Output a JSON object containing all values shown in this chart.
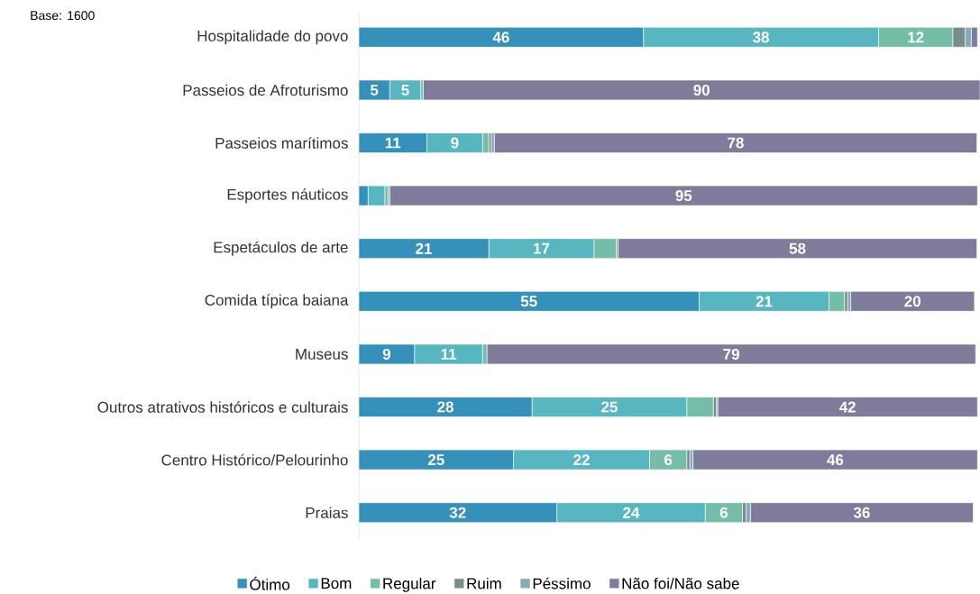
{
  "chart_data": {
    "type": "bar",
    "orientation": "horizontal",
    "stacked": true,
    "categories": [
      "Hospitalidade do povo",
      "Passeios de Afroturismo",
      "Passeios marítimos",
      "Esportes náuticos",
      "Espetáculos de arte",
      "Comida típica baiana",
      "Museus",
      "Outros atrativos históricos e culturais",
      "Centro Histórico/Pelourinho",
      "Praias"
    ],
    "series": [
      {
        "name": "Ótimo",
        "color": "#3591b9",
        "values": [
          46,
          5,
          11,
          1.5,
          21,
          55,
          9,
          28,
          25,
          32
        ],
        "value_labels": [
          "46",
          "5",
          "11",
          null,
          "21",
          "55",
          "9",
          "28",
          "25",
          "32"
        ]
      },
      {
        "name": "Bom",
        "color": "#58b6c0",
        "values": [
          38,
          5,
          9,
          2.7,
          17,
          21,
          11,
          25,
          22,
          24
        ],
        "value_labels": [
          "38",
          "5",
          "9",
          null,
          "17",
          "21",
          "11",
          "25",
          "22",
          "24"
        ]
      },
      {
        "name": "Regular",
        "color": "#75bda7",
        "values": [
          12,
          0.4,
          1,
          0.5,
          3.6,
          2.5,
          0.7,
          4.3,
          6,
          6
        ],
        "value_labels": [
          "12",
          null,
          null,
          null,
          null,
          null,
          null,
          null,
          "6",
          "6"
        ]
      },
      {
        "name": "Ruim",
        "color": "#7a8c8e",
        "values": [
          2,
          0,
          0.4,
          0,
          0,
          0.5,
          0,
          0.5,
          0.5,
          0.6
        ],
        "value_labels": [
          null,
          null,
          null,
          null,
          null,
          null,
          null,
          null,
          null,
          null
        ]
      },
      {
        "name": "Péssimo",
        "color": "#84acb6",
        "values": [
          1,
          0,
          0.5,
          0.3,
          0.3,
          0.5,
          0,
          0.2,
          0.5,
          0.7
        ],
        "value_labels": [
          null,
          null,
          null,
          null,
          null,
          null,
          null,
          null,
          null,
          null
        ]
      },
      {
        "name": "Não foi/Não sabe",
        "color": "#7f7c9b",
        "values": [
          1,
          90,
          78,
          95,
          58,
          20,
          79,
          42,
          46,
          36
        ],
        "value_labels": [
          null,
          "90",
          "78",
          "95",
          "58",
          "20",
          "79",
          "42",
          "46",
          "36"
        ]
      }
    ],
    "legend": "bottom",
    "annotations": [
      "Base: 1600"
    ]
  }
}
